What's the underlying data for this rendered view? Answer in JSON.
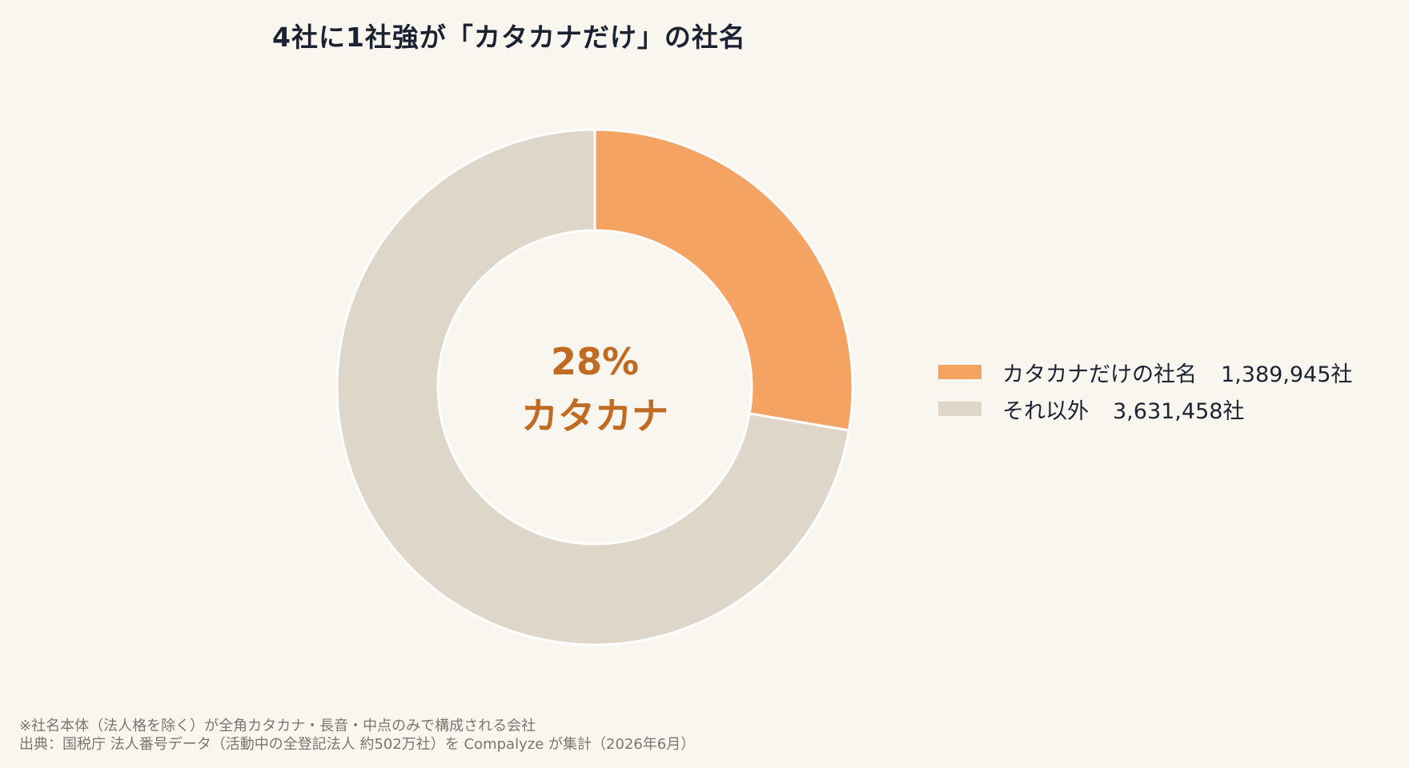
{
  "title": "4社に1社強が「カタカナだけ」の社名",
  "colors": {
    "background": "#f9f6f0",
    "katakana": "#f4a362",
    "other": "#ddd6c9",
    "center_text": "#c06a22",
    "ring_stroke": "#ffffff"
  },
  "chart_data": {
    "type": "pie",
    "donut": true,
    "title": "4社に1社強が「カタカナだけ」の社名",
    "start": "12 o'clock, clockwise",
    "legend_position": "right",
    "center_label": {
      "percent": "28%",
      "text": "カタカナ"
    },
    "slices": [
      {
        "label": "カタカナだけの社名",
        "value": 1389945,
        "value_text": "1,389,945社",
        "color": "#f4a362"
      },
      {
        "label": "それ以外",
        "value": 3631458,
        "value_text": "3,631,458社",
        "color": "#ddd6c9"
      }
    ]
  },
  "footnote": {
    "line1": "※社名本体（法人格を除く）が全角カタカナ・長音・中点のみで構成される会社",
    "line2": "出典：国税庁 法人番号データ（活動中の全登記法人 約502万社）を Compalyze が集計（2026年6月）"
  }
}
